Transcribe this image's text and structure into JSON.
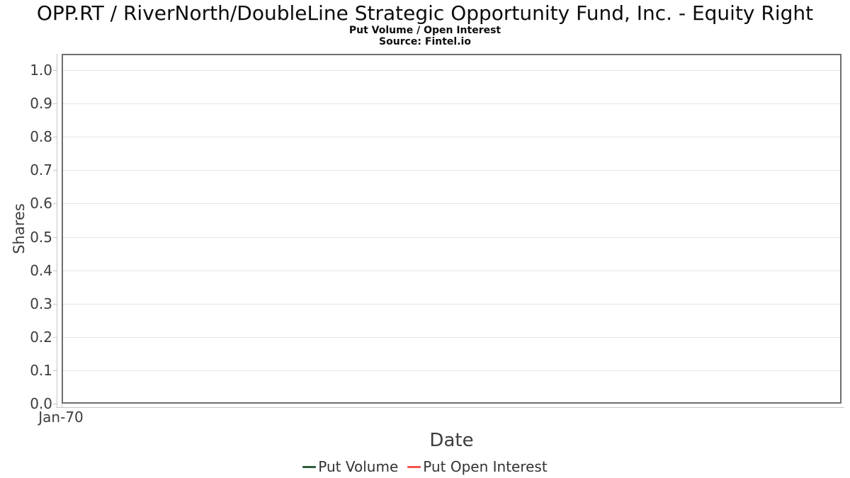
{
  "chart_data": {
    "type": "line",
    "title": "OPP.RT / RiverNorth/DoubleLine Strategic Opportunity Fund, Inc. - Equity Right",
    "subtitle": "Put Volume / Open Interest",
    "source_note": "Source: Fintel.io",
    "xlabel": "Date",
    "ylabel": "Shares",
    "x_tick_labels": [
      "Jan-70"
    ],
    "y_ticks": [
      1.0,
      0.9,
      0.8,
      0.7,
      0.6,
      0.5,
      0.4,
      0.3,
      0.2,
      0.1,
      0.0
    ],
    "ylim": [
      0.0,
      1.05
    ],
    "grid": true,
    "legend_position": "bottom-center",
    "series": [
      {
        "name": "Put Volume",
        "color": "#2d5c3d",
        "x": [],
        "values": []
      },
      {
        "name": "Put Open Interest",
        "color": "#f4534e",
        "x": [],
        "values": []
      }
    ],
    "style": {
      "panel_border_color": "#6f6f6f",
      "gridline_color": "#e5e5e5",
      "tick_color": "#c6c6c6",
      "tick_label_color": "#3d3d3d",
      "background": "#ffffff"
    }
  }
}
